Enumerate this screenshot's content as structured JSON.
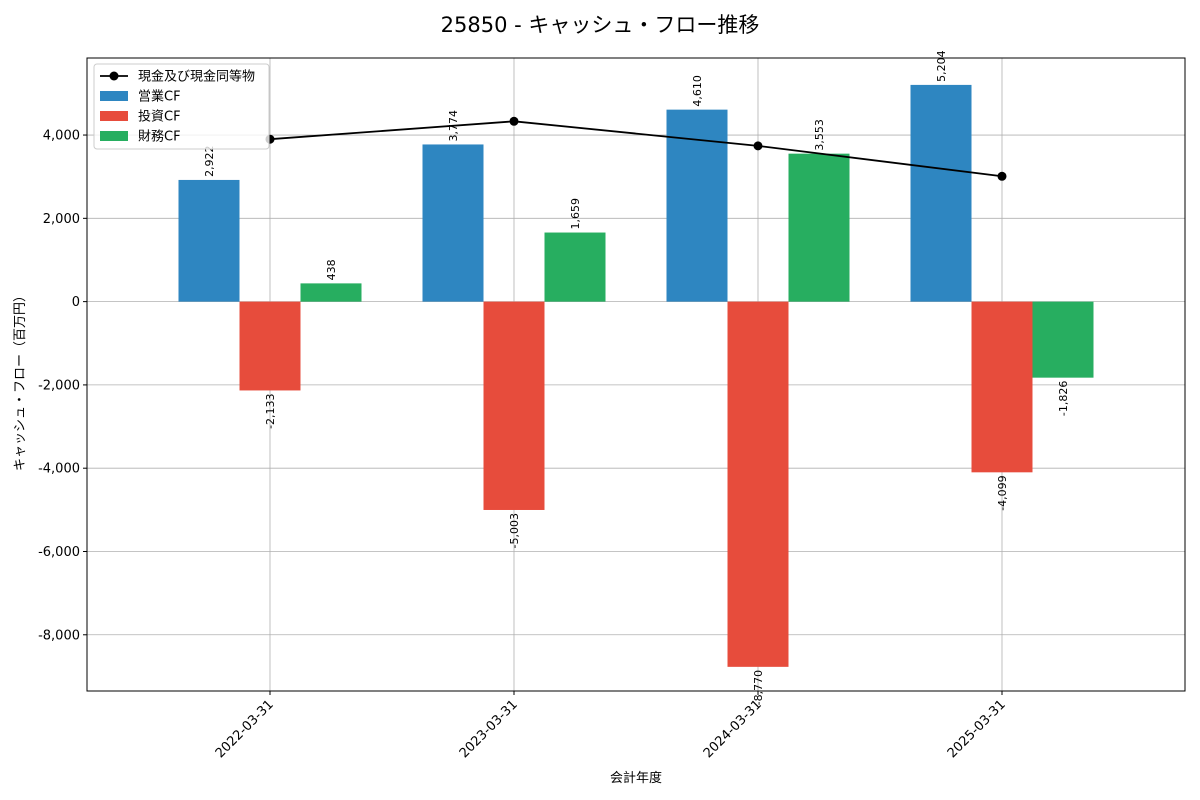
{
  "chart_data": {
    "type": "bar",
    "title": "25850 - キャッシュ・フロー推移",
    "xlabel": "会計年度",
    "ylabel": "キャッシュ・フロー（百万円）",
    "categories": [
      "2022-03-31",
      "2023-03-31",
      "2024-03-31",
      "2025-03-31"
    ],
    "ylim": [
      -9350,
      5850
    ],
    "yticks": [
      -8000,
      -6000,
      -4000,
      -2000,
      0,
      2000,
      4000
    ],
    "ytick_labels": [
      "-8,000",
      "-6,000",
      "-4,000",
      "-2,000",
      "0",
      "2,000",
      "4,000"
    ],
    "grid": true,
    "legend_position": "top-left",
    "series": [
      {
        "name": "営業CF",
        "kind": "bar",
        "color": "#2e86c1",
        "values": [
          2922,
          3774,
          4610,
          5204
        ],
        "labels": [
          "2,922",
          "3,774",
          "4,610",
          "5,204"
        ]
      },
      {
        "name": "投資CF",
        "kind": "bar",
        "color": "#e74c3c",
        "values": [
          -2133,
          -5003,
          -8770,
          -4099
        ],
        "labels": [
          "-2,133",
          "-5,003",
          "-8,770",
          "-4,099"
        ]
      },
      {
        "name": "財務CF",
        "kind": "bar",
        "color": "#27ae60",
        "values": [
          438,
          1659,
          3553,
          -1826
        ],
        "labels": [
          "438",
          "1,659",
          "3,553",
          "-1,826"
        ]
      },
      {
        "name": "現金及び現金同等物",
        "kind": "line",
        "color": "#000000",
        "marker": "circle",
        "values": [
          3900,
          4330,
          3740,
          3010
        ]
      }
    ]
  }
}
